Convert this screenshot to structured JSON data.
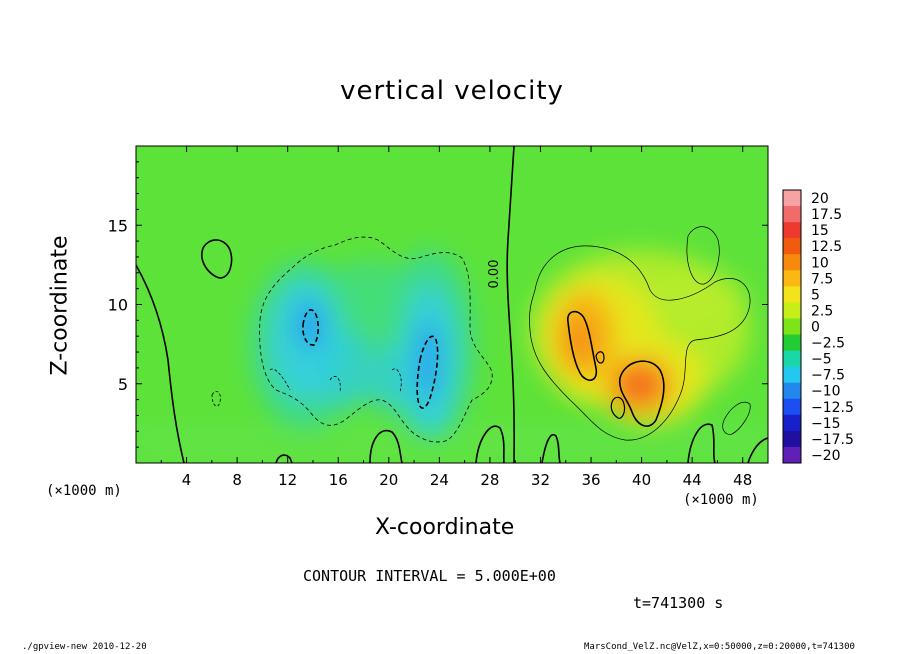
{
  "chart_data": {
    "type": "heatmap",
    "title": "vertical velocity",
    "xlabel": "X-coordinate",
    "ylabel": "Z-coordinate",
    "x_unit_label": "(×1000 m)",
    "xlim": [
      0,
      50
    ],
    "ylim": [
      0,
      20
    ],
    "x_ticks": [
      4,
      8,
      12,
      16,
      20,
      24,
      28,
      32,
      36,
      40,
      44,
      48
    ],
    "y_ticks": [
      5,
      10,
      15
    ],
    "colorbar": {
      "levels": [
        "20",
        "17.5",
        "15",
        "12.5",
        "10",
        "7.5",
        "5",
        "2.5",
        "0",
        "−2.5",
        "−5",
        "−7.5",
        "−10",
        "−12.5",
        "−15",
        "−17.5",
        "−20"
      ],
      "colors": [
        "#f7a3a3",
        "#f26b6b",
        "#ee3a2e",
        "#f25a10",
        "#f78a0c",
        "#fbb812",
        "#f2e418",
        "#c8ee18",
        "#7ee41a",
        "#22cc33",
        "#18d8a8",
        "#22c8ee",
        "#2288ee",
        "#1c4ef2",
        "#1820cc",
        "#2010a0",
        "#6020b8"
      ]
    },
    "features": [
      {
        "kind": "updraft",
        "x": 40,
        "z": 5,
        "value": 12
      },
      {
        "kind": "updraft",
        "x": 35,
        "z": 8,
        "value": 8
      },
      {
        "kind": "downdraft",
        "x": 13.8,
        "z": 8.8,
        "value": -7
      },
      {
        "kind": "downdraft",
        "x": 23,
        "z": 6,
        "value": -7
      }
    ],
    "contour_labels": [
      "0.00"
    ],
    "contour_interval": "5.000E+00"
  },
  "annotations": {
    "contour_text": "CONTOUR INTERVAL = 5.000E+00",
    "time_text": "t=741300 s",
    "footer_left": "./gpview-new   2010-12-20",
    "footer_right": "MarsCond_VelZ.nc@VelZ,x=0:50000,z=0:20000,t=741300"
  }
}
